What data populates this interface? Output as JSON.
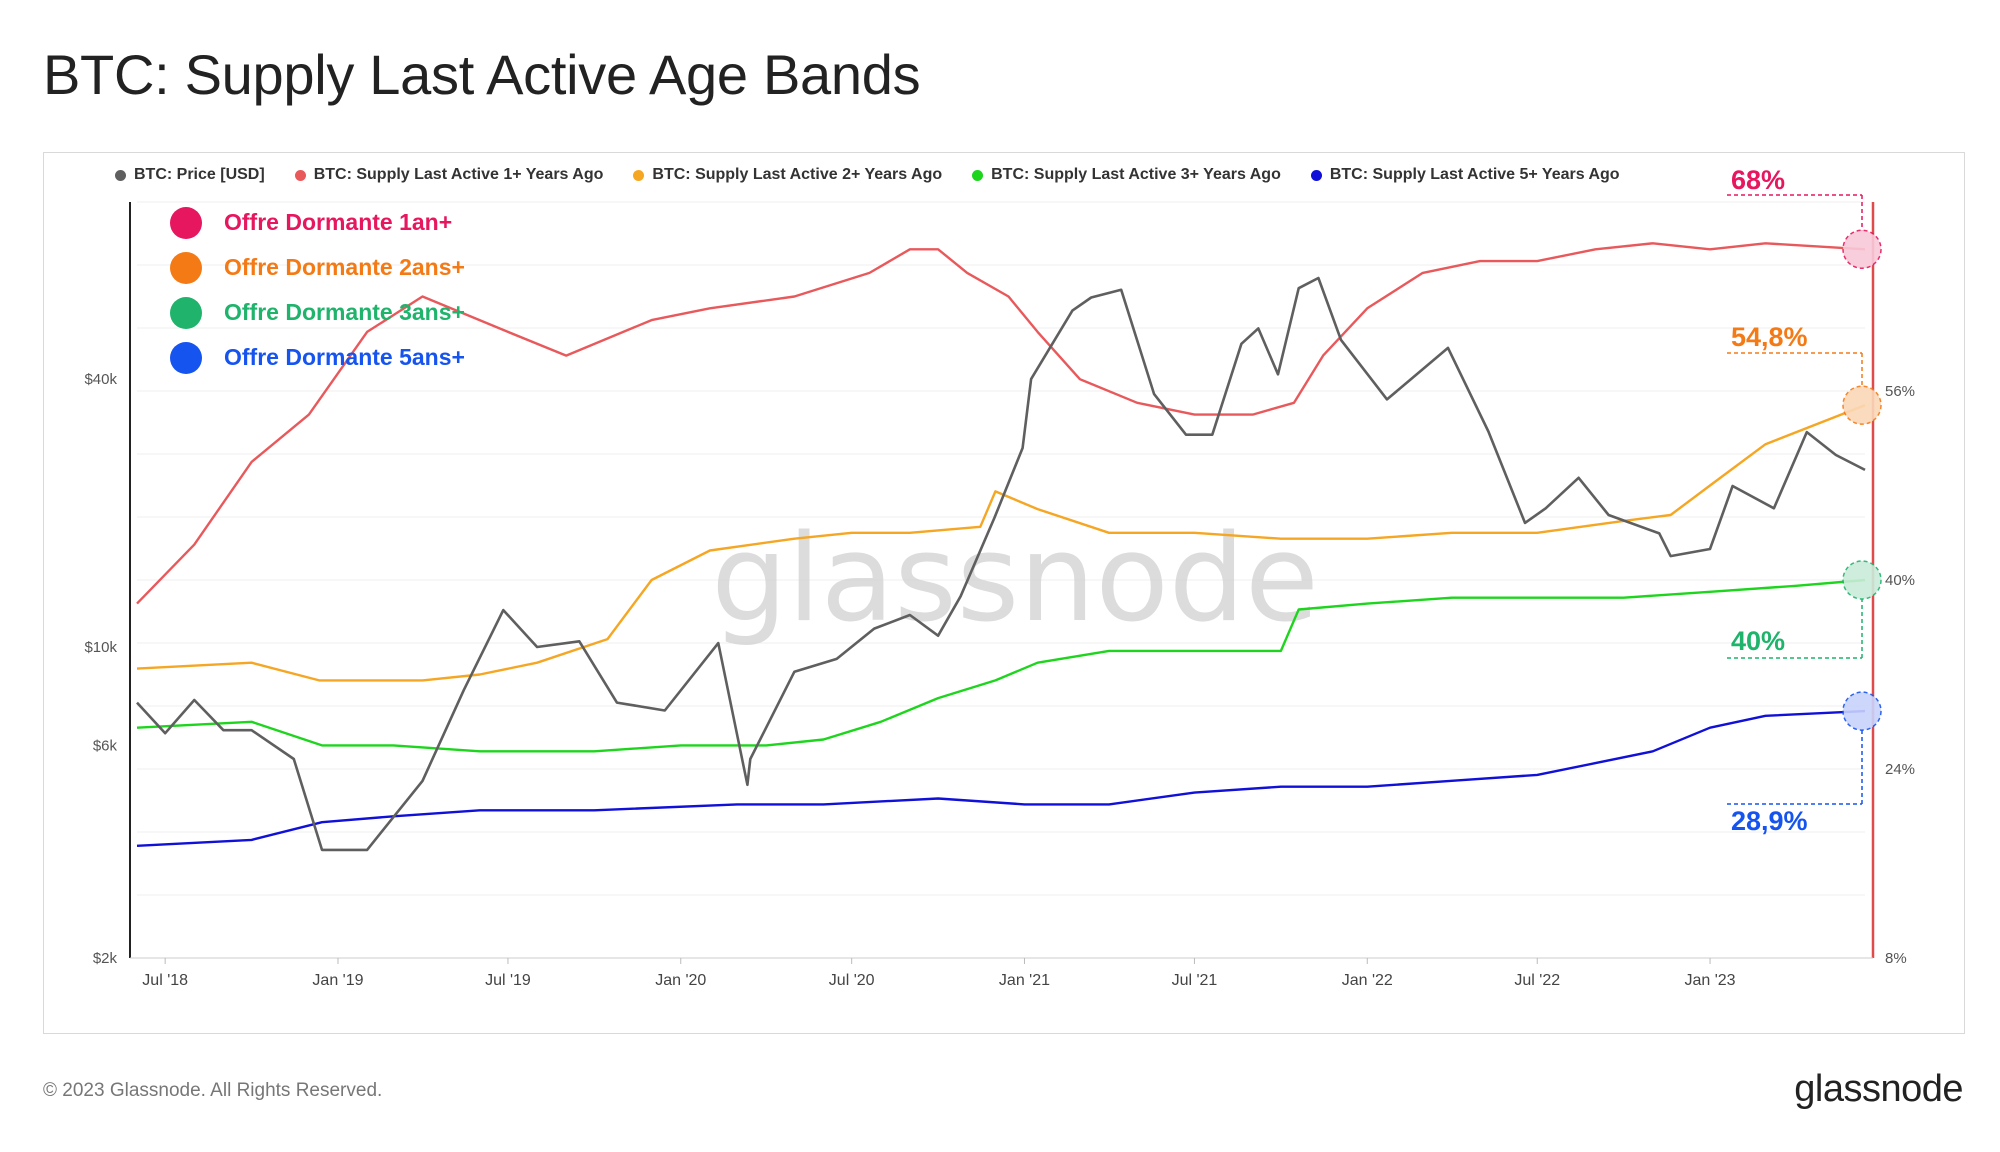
{
  "title": "BTC: Supply Last Active Age Bands",
  "footer": {
    "copyright": "© 2023 Glassnode. All Rights Reserved.",
    "logo": "glassnode"
  },
  "watermark": "glassnode",
  "legend": [
    {
      "label": "BTC: Price [USD]",
      "color": "#5f5f5f"
    },
    {
      "label": "BTC: Supply Last Active 1+ Years Ago",
      "color": "#e8595c"
    },
    {
      "label": "BTC: Supply Last Active 2+ Years Ago",
      "color": "#f5a623"
    },
    {
      "label": "BTC: Supply Last Active 3+ Years Ago",
      "color": "#1ed51e"
    },
    {
      "label": "BTC: Supply Last Active 5+ Years Ago",
      "color": "#1010d8"
    }
  ],
  "annotations": [
    {
      "label": "Offre Dormante 1an+",
      "color": "#e6165f"
    },
    {
      "label": "Offre Dormante 2ans+",
      "color": "#f47a16"
    },
    {
      "label": "Offre Dormante 3ans+",
      "color": "#1fb36c"
    },
    {
      "label": "Offre Dormante 5ans+",
      "color": "#1654f0"
    }
  ],
  "callouts": [
    {
      "text": "68%",
      "color": "#e6165f"
    },
    {
      "text": "54,8%",
      "color": "#f47a16"
    },
    {
      "text": "40%",
      "color": "#1fb36c"
    },
    {
      "text": "28,9%",
      "color": "#1654f0"
    }
  ],
  "chart_data": {
    "type": "line",
    "title": "BTC: Supply Last Active Age Bands",
    "x_start": "2018-06-01",
    "x_end": "2023-06-15",
    "x_ticks": [
      "Jul '18",
      "Jan '19",
      "Jul '19",
      "Jan '20",
      "Jul '20",
      "Jan '21",
      "Jul '21",
      "Jan '22",
      "Jul '22",
      "Jan '23"
    ],
    "y_left": {
      "scale": "log",
      "ylim": [
        2000,
        100000
      ],
      "ticks": [
        {
          "value": 2000,
          "label": "$2k"
        },
        {
          "value": 6000,
          "label": "$6k"
        },
        {
          "value": 10000,
          "label": "$10k"
        },
        {
          "value": 40000,
          "label": "$40k"
        }
      ]
    },
    "y_right": {
      "scale": "linear",
      "ylim": [
        8,
        72
      ],
      "ticks": [
        {
          "value": 8,
          "label": "8%"
        },
        {
          "value": 24,
          "label": "24%"
        },
        {
          "value": 40,
          "label": "40%"
        },
        {
          "value": 56,
          "label": "56%"
        }
      ]
    },
    "series": [
      {
        "name": "BTC: Price [USD]",
        "axis": "left",
        "color": "#5f5f5f",
        "x": [
          "2018-06-01",
          "2018-07-01",
          "2018-08-01",
          "2018-09-01",
          "2018-10-01",
          "2018-11-15",
          "2018-12-15",
          "2019-02-01",
          "2019-04-01",
          "2019-05-15",
          "2019-06-26",
          "2019-08-01",
          "2019-09-15",
          "2019-10-25",
          "2019-12-15",
          "2020-02-10",
          "2020-03-12",
          "2020-03-15",
          "2020-05-01",
          "2020-06-15",
          "2020-07-25",
          "2020-09-01",
          "2020-10-01",
          "2020-10-25",
          "2020-11-30",
          "2020-12-30",
          "2021-01-08",
          "2021-02-21",
          "2021-03-13",
          "2021-04-14",
          "2021-05-19",
          "2021-06-22",
          "2021-07-20",
          "2021-08-20",
          "2021-09-07",
          "2021-09-28",
          "2021-10-20",
          "2021-11-10",
          "2021-12-04",
          "2022-01-22",
          "2022-03-28",
          "2022-05-10",
          "2022-06-18",
          "2022-07-10",
          "2022-08-14",
          "2022-09-15",
          "2022-11-08",
          "2022-11-20",
          "2023-01-01",
          "2023-01-25",
          "2023-03-10",
          "2023-04-14",
          "2023-05-15",
          "2023-06-15"
        ],
        "values": [
          7500,
          6400,
          7600,
          6500,
          6500,
          5600,
          3500,
          3500,
          5000,
          8000,
          12100,
          10000,
          10300,
          7500,
          7200,
          10200,
          4900,
          5600,
          8800,
          9400,
          11000,
          11800,
          10600,
          13000,
          19500,
          28000,
          40000,
          57000,
          61000,
          63500,
          37000,
          30000,
          30000,
          48000,
          52000,
          41000,
          64000,
          67500,
          49000,
          36000,
          47000,
          30500,
          19000,
          20500,
          24000,
          19800,
          18000,
          16000,
          16600,
          23000,
          20500,
          30400,
          27000,
          25000
        ]
      },
      {
        "name": "BTC: Supply Last Active 1+ Years Ago",
        "axis": "right",
        "color": "#e8595c",
        "x": [
          "2018-06-01",
          "2018-08-01",
          "2018-10-01",
          "2018-12-01",
          "2019-02-01",
          "2019-04-01",
          "2019-07-01",
          "2019-09-01",
          "2019-12-01",
          "2020-02-01",
          "2020-05-01",
          "2020-07-20",
          "2020-09-01",
          "2020-10-01",
          "2020-11-01",
          "2020-12-15",
          "2021-01-15",
          "2021-03-01",
          "2021-05-01",
          "2021-07-01",
          "2021-09-01",
          "2021-10-15",
          "2021-11-15",
          "2022-01-01",
          "2022-03-01",
          "2022-05-01",
          "2022-07-01",
          "2022-09-01",
          "2022-11-01",
          "2023-01-01",
          "2023-03-01",
          "2023-06-15"
        ],
        "values": [
          38,
          43,
          50,
          54,
          61,
          64,
          61,
          59,
          62,
          63,
          64,
          66,
          68,
          68,
          66,
          64,
          61,
          57,
          55,
          54,
          54,
          55,
          59,
          63,
          66,
          67,
          67,
          68,
          68.5,
          68,
          68.5,
          68
        ]
      },
      {
        "name": "BTC: Supply Last Active 2+ Years Ago",
        "axis": "right",
        "color": "#f5a623",
        "x": [
          "2018-06-01",
          "2018-10-01",
          "2018-12-12",
          "2019-04-01",
          "2019-06-01",
          "2019-08-01",
          "2019-10-15",
          "2019-12-01",
          "2020-02-01",
          "2020-05-01",
          "2020-07-01",
          "2020-09-01",
          "2020-11-15",
          "2020-12-01",
          "2021-01-15",
          "2021-04-01",
          "2021-07-01",
          "2021-10-01",
          "2022-01-01",
          "2022-04-01",
          "2022-07-01",
          "2022-10-01",
          "2022-11-20",
          "2023-01-01",
          "2023-03-01",
          "2023-06-15"
        ],
        "values": [
          32.5,
          33,
          31.5,
          31.5,
          32,
          33,
          35,
          40,
          42.5,
          43.5,
          44,
          44,
          44.5,
          47.5,
          46,
          44,
          44,
          43.5,
          43.5,
          44,
          44,
          45,
          45.5,
          48,
          51.5,
          54.8
        ]
      },
      {
        "name": "BTC: Supply Last Active 3+ Years Ago",
        "axis": "right",
        "color": "#1ed51e",
        "x": [
          "2018-06-01",
          "2018-10-01",
          "2018-12-15",
          "2019-03-01",
          "2019-06-01",
          "2019-10-01",
          "2020-01-01",
          "2020-04-01",
          "2020-06-01",
          "2020-08-01",
          "2020-10-01",
          "2020-12-01",
          "2021-01-15",
          "2021-04-01",
          "2021-07-01",
          "2021-10-01",
          "2021-10-20",
          "2022-01-01",
          "2022-04-01",
          "2022-07-01",
          "2022-10-01",
          "2023-01-01",
          "2023-04-01",
          "2023-06-15"
        ],
        "values": [
          27.5,
          28,
          26,
          26,
          25.5,
          25.5,
          26,
          26,
          26.5,
          28,
          30,
          31.5,
          33,
          34,
          34,
          34,
          37.5,
          38,
          38.5,
          38.5,
          38.5,
          39,
          39.5,
          40
        ]
      },
      {
        "name": "BTC: Supply Last Active 5+ Years Ago",
        "axis": "right",
        "color": "#1010d8",
        "x": [
          "2018-06-01",
          "2018-10-01",
          "2018-12-15",
          "2019-03-01",
          "2019-06-01",
          "2019-10-01",
          "2020-03-01",
          "2020-06-01",
          "2020-10-01",
          "2021-01-01",
          "2021-04-01",
          "2021-07-01",
          "2021-10-01",
          "2022-01-01",
          "2022-04-01",
          "2022-07-01",
          "2022-09-01",
          "2022-11-01",
          "2023-01-01",
          "2023-03-01",
          "2023-06-15"
        ],
        "values": [
          17.5,
          18,
          19.5,
          20,
          20.5,
          20.5,
          21,
          21,
          21.5,
          21,
          21,
          22,
          22.5,
          22.5,
          23,
          23.5,
          24.5,
          25.5,
          27.5,
          28.5,
          28.9
        ]
      }
    ]
  }
}
